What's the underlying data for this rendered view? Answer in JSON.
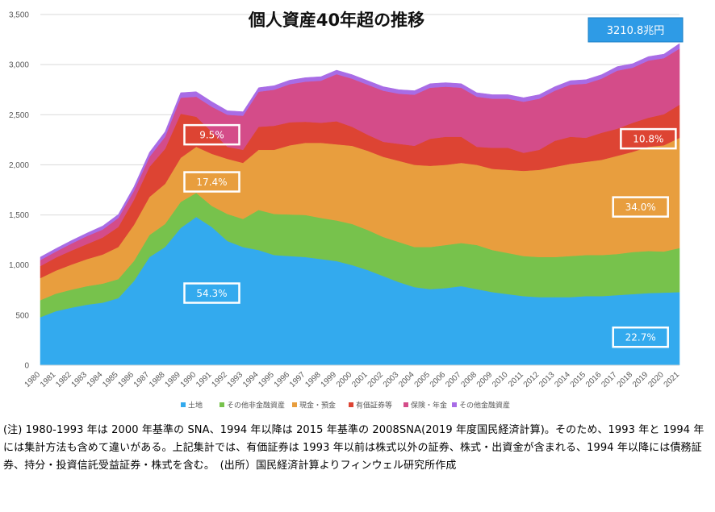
{
  "chart_data": {
    "type": "area",
    "stacked": true,
    "title": "個人資産40年超の推移",
    "total_label": "3210.8兆円",
    "x": [
      "1980",
      "1981",
      "1982",
      "1983",
      "1984",
      "1985",
      "1986",
      "1987",
      "1988",
      "1989",
      "1990",
      "1991",
      "1992",
      "1993",
      "1994",
      "1995",
      "1996",
      "1997",
      "1998",
      "1999",
      "2000",
      "2001",
      "2002",
      "2003",
      "2004",
      "2005",
      "2006",
      "2007",
      "2008",
      "2009",
      "2010",
      "2011",
      "2012",
      "2013",
      "2014",
      "2015",
      "2016",
      "2017",
      "2018",
      "2019",
      "2020",
      "2021"
    ],
    "ylim": [
      0,
      3500
    ],
    "yticks": [
      "0",
      "500",
      "1,000",
      "1,500",
      "2,000",
      "2,500",
      "3,000",
      "3,500"
    ],
    "grid": true,
    "legend_position": "bottom",
    "series": [
      {
        "name": "土地",
        "color": "#33aaee",
        "values": [
          480,
          540,
          575,
          605,
          625,
          670,
          840,
          1080,
          1180,
          1370,
          1480,
          1380,
          1240,
          1180,
          1150,
          1100,
          1090,
          1080,
          1060,
          1040,
          1000,
          950,
          890,
          830,
          780,
          760,
          770,
          790,
          760,
          730,
          710,
          690,
          680,
          680,
          680,
          690,
          690,
          700,
          710,
          720,
          725,
          730
        ]
      },
      {
        "name": "その他非金融資産",
        "color": "#77c24c",
        "values": [
          170,
          175,
          180,
          185,
          190,
          190,
          200,
          220,
          230,
          260,
          240,
          210,
          270,
          280,
          400,
          410,
          415,
          420,
          410,
          405,
          410,
          400,
          390,
          400,
          400,
          420,
          430,
          430,
          440,
          420,
          410,
          400,
          400,
          400,
          410,
          410,
          410,
          410,
          420,
          420,
          410,
          440
        ]
      },
      {
        "name": "現金・預金",
        "color": "#e89e3e",
        "values": [
          220,
          230,
          250,
          270,
          290,
          320,
          360,
          380,
          400,
          440,
          460,
          520,
          550,
          560,
          600,
          640,
          690,
          720,
          750,
          760,
          780,
          790,
          800,
          810,
          820,
          810,
          800,
          800,
          800,
          810,
          830,
          850,
          870,
          900,
          920,
          930,
          950,
          980,
          1000,
          1040,
          1060,
          1100
        ]
      },
      {
        "name": "有価証券等",
        "color": "#dd4433",
        "values": [
          120,
          130,
          140,
          150,
          170,
          200,
          250,
          300,
          350,
          440,
          300,
          220,
          120,
          130,
          230,
          240,
          230,
          210,
          200,
          230,
          190,
          160,
          150,
          170,
          190,
          270,
          280,
          260,
          180,
          210,
          220,
          180,
          200,
          260,
          270,
          240,
          270,
          270,
          290,
          290,
          310,
          330
        ]
      },
      {
        "name": "保険・年金",
        "color": "#d44c89",
        "values": [
          60,
          60,
          70,
          80,
          80,
          90,
          90,
          100,
          120,
          160,
          200,
          250,
          320,
          340,
          350,
          360,
          380,
          400,
          420,
          470,
          480,
          500,
          510,
          500,
          510,
          510,
          500,
          490,
          500,
          490,
          490,
          510,
          510,
          500,
          520,
          540,
          540,
          580,
          550,
          570,
          560,
          560
        ]
      },
      {
        "name": "その他金融資産",
        "color": "#a86ce6",
        "values": [
          30,
          30,
          30,
          30,
          35,
          35,
          40,
          45,
          50,
          50,
          50,
          50,
          40,
          40,
          40,
          40,
          40,
          40,
          40,
          40,
          40,
          40,
          40,
          40,
          40,
          40,
          40,
          40,
          40,
          40,
          40,
          40,
          40,
          40,
          40,
          40,
          40,
          40,
          40,
          40,
          40,
          50
        ]
      }
    ],
    "annotations": [
      {
        "text": "9.5%",
        "x": "1991",
        "y": 2300,
        "color": "#ffffff",
        "text_color": "#ffffff"
      },
      {
        "text": "17.4%",
        "x": "1991",
        "y": 1830,
        "color": "#ffffff",
        "text_color": "#ffffff"
      },
      {
        "text": "54.3%",
        "x": "1991",
        "y": 720,
        "color": "#ffffff",
        "text_color": "#ffffff"
      },
      {
        "text": "10.8%",
        "x": "2019",
        "y": 2260,
        "color": "#ffffff",
        "text_color": "#ffffff"
      },
      {
        "text": "34.0%",
        "x": "2018.5",
        "y": 1580,
        "color": "#ffffff",
        "text_color": "#ffffff"
      },
      {
        "text": "22.7%",
        "x": "2018.5",
        "y": 280,
        "color": "#ffffff",
        "text_color": "#ffffff"
      }
    ]
  },
  "footnote": "(注) 1980-1993 年は 2000 年基準の SNA、1994 年以降は 2015 年基準の 2008SNA(2019 年度国民経済計算)。そのため、1993 年と 1994 年には集計方法も含めて違いがある。上記集計では、有価証券は 1993 年以前は株式以外の証券、株式・出資金が含まれる、1994 年以降には債務証券、持分・投資信託受益証券・株式を含む。　(出所）国民経済計算よりフィンウェル研究所作成"
}
